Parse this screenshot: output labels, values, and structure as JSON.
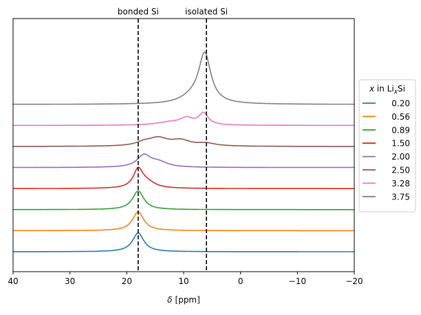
{
  "chart_data": {
    "type": "line",
    "xlabel_prefix": "δ",
    "xlabel_unit": "[ppm]",
    "xlim": [
      40,
      -20
    ],
    "x_ticks": [
      40,
      30,
      20,
      10,
      0,
      -10,
      -20
    ],
    "x_tick_labels": [
      "40",
      "30",
      "20",
      "10",
      "0",
      "−10",
      "−20"
    ],
    "y_ticks_visible": false,
    "grid": false,
    "legend": {
      "placement": "right-outside",
      "title_x": "x",
      "title_rest": " in Li",
      "title_sub": "x",
      "title_end": "Si"
    },
    "vlines": [
      {
        "x": 18,
        "label": "bonded Si",
        "style": "dashed"
      },
      {
        "x": 6,
        "label": "isolated Si",
        "style": "dashed"
      }
    ],
    "series": [
      {
        "name": "0.20",
        "color": "#1f77b4",
        "offset": 0,
        "peaks": [
          {
            "center": 18,
            "height": 0.65,
            "width": 1.2
          }
        ]
      },
      {
        "name": "0.56",
        "color": "#ff7f0e",
        "offset": 1,
        "peaks": [
          {
            "center": 18,
            "height": 0.65,
            "width": 1.2
          }
        ]
      },
      {
        "name": "0.89",
        "color": "#2ca02c",
        "offset": 2,
        "peaks": [
          {
            "center": 18,
            "height": 0.65,
            "width": 1.2
          }
        ]
      },
      {
        "name": "1.50",
        "color": "#d62728",
        "offset": 3,
        "peaks": [
          {
            "center": 18,
            "height": 0.62,
            "width": 1.0
          },
          {
            "center": 16.5,
            "height": 0.2,
            "width": 1.8
          }
        ]
      },
      {
        "name": "2.00",
        "color": "#9467bd",
        "offset": 4,
        "peaks": [
          {
            "center": 17,
            "height": 0.4,
            "width": 1.4
          },
          {
            "center": 14.5,
            "height": 0.18,
            "width": 2.0
          }
        ]
      },
      {
        "name": "2.50",
        "color": "#8c564b",
        "offset": 5,
        "peaks": [
          {
            "center": 17,
            "height": 0.1,
            "width": 1.6
          },
          {
            "center": 14.5,
            "height": 0.27,
            "width": 2.2
          },
          {
            "center": 10.5,
            "height": 0.18,
            "width": 2.0
          },
          {
            "center": 6,
            "height": 0.09,
            "width": 2.0
          }
        ]
      },
      {
        "name": "3.28",
        "color": "#e377c2",
        "offset": 6,
        "peaks": [
          {
            "center": 12.5,
            "height": 0.1,
            "width": 2.8
          },
          {
            "center": 9.5,
            "height": 0.22,
            "width": 1.4
          },
          {
            "center": 6.5,
            "height": 0.4,
            "width": 1.0
          }
        ]
      },
      {
        "name": "3.75",
        "color": "#7f7f7f",
        "offset": 7,
        "peaks": [
          {
            "center": 6.3,
            "height": 1.7,
            "width": 1.3
          },
          {
            "center": 8.5,
            "height": 0.2,
            "width": 2.5
          }
        ]
      }
    ]
  }
}
